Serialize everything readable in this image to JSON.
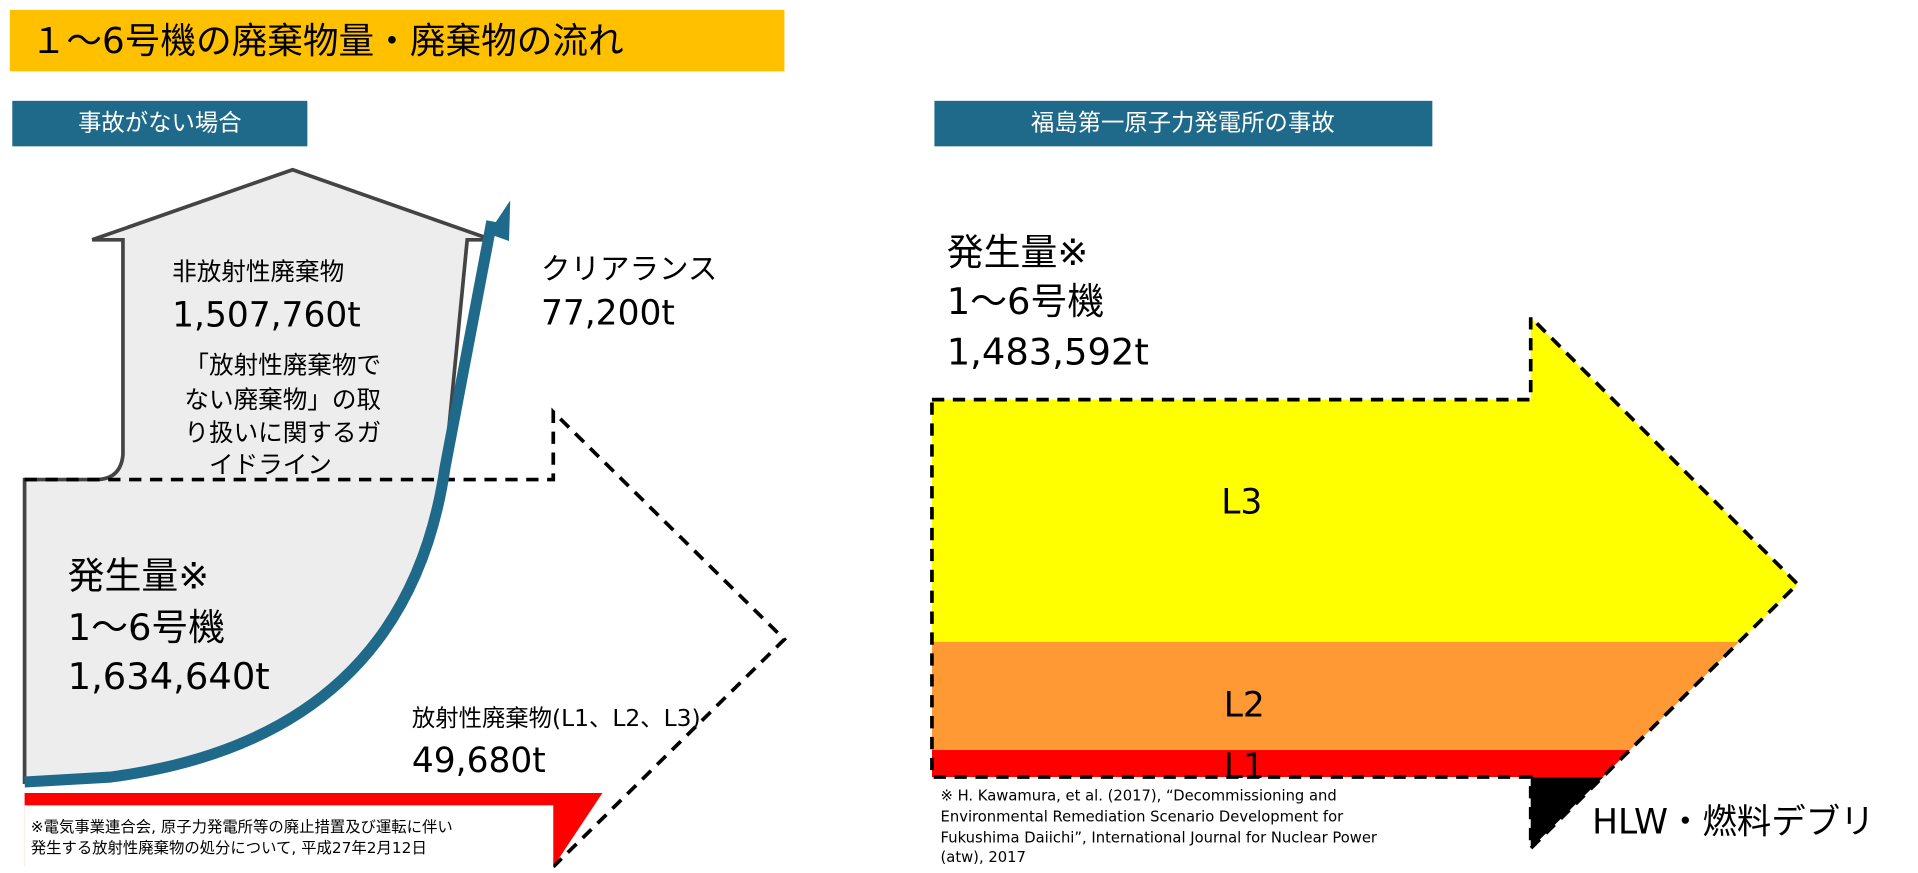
{
  "header": {
    "title": "１～6号機の廃棄物量・廃棄物の流れ"
  },
  "left": {
    "heading": "事故がない場合",
    "nonradioactive": {
      "label": "非放射性廃棄物",
      "amount": "1,507,760t",
      "guideline": [
        "「放射性廃棄物で",
        "ない廃棄物」の取",
        "り扱いに関するガ",
        "イドライン"
      ]
    },
    "clearance": {
      "label": "クリアランス",
      "amount": "77,200t"
    },
    "generated": {
      "label": "発生量※",
      "units": "1～6号機",
      "amount": "1,634,640t"
    },
    "radioactive": {
      "label": "放射性廃棄物(L1、L2、L3)",
      "amount": "49,680t"
    },
    "note": [
      "※電気事業連合会, 原子力発電所等の廃止措置及び運転に伴い",
      "発生する放射性廃棄物の処分について, 平成27年2月12日"
    ]
  },
  "right": {
    "heading": "福島第一原子力発電所の事故",
    "generated": {
      "label": "発生量※",
      "units": "1～6号機",
      "amount": "1,483,592t"
    },
    "levels": [
      "L3",
      "L2",
      "L1"
    ],
    "hlw": "HLW・燃料デブリ",
    "note": [
      "※ H. Kawamura, et al. (2017), “Decommissioning and",
      "Environmental Remediation Scenario Development for",
      "Fukushima Daiichi”, International Journal for Nuclear Power",
      "(atw), 2017"
    ]
  }
}
